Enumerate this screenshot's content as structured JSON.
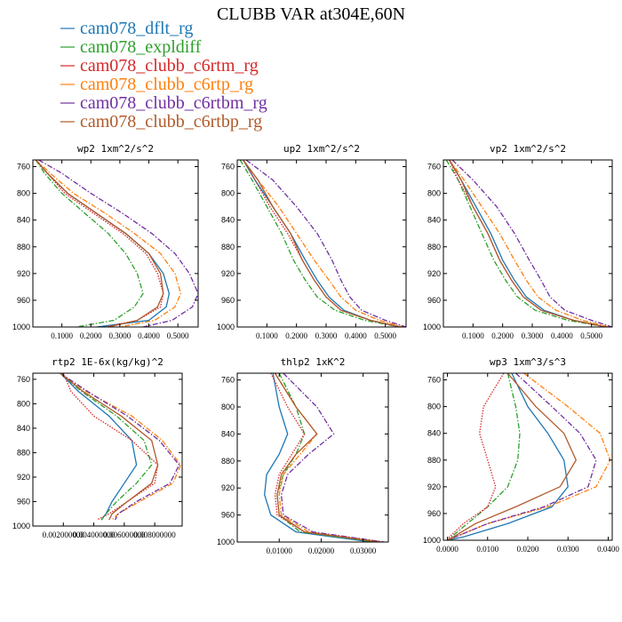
{
  "title": "CLUBB VAR at304E,60N",
  "legend": [
    {
      "label": "cam078_dflt_rg",
      "color": "#1f77b4",
      "dash": "solid"
    },
    {
      "label": "cam078_expldiff",
      "color": "#2ca02c",
      "dash": "dashdot"
    },
    {
      "label": "cam078_clubb_c6rtm_rg",
      "color": "#d62728",
      "dash": "dotted"
    },
    {
      "label": "cam078_clubb_c6rtp_rg",
      "color": "#ff7f0e",
      "dash": "dashdot"
    },
    {
      "label": "cam078_clubb_c6rtbm_rg",
      "color": "#7030a0",
      "dash": "dashdot"
    },
    {
      "label": "cam078_clubb_c6rtbp_rg",
      "color": "#b05a2a",
      "dash": "solid"
    }
  ],
  "chart_data": [
    {
      "type": "line",
      "title": "wp2  1xm^2/s^2",
      "yticks": [
        "760",
        "800",
        "840",
        "880",
        "920",
        "960",
        "1000"
      ],
      "xticks": [
        "0.1000",
        "0.2000",
        "0.3000",
        "0.4000",
        "0.5000"
      ],
      "xlim": [
        0.0,
        0.57
      ],
      "ylim": [
        1000,
        750
      ],
      "series": [
        {
          "x": [
            0.01,
            0.05,
            0.12,
            0.22,
            0.32,
            0.4,
            0.45,
            0.47,
            0.46,
            0.4,
            0.22
          ],
          "y": [
            750,
            770,
            800,
            830,
            860,
            890,
            920,
            950,
            970,
            990,
            1000
          ]
        },
        {
          "x": [
            0.01,
            0.04,
            0.1,
            0.18,
            0.26,
            0.32,
            0.36,
            0.38,
            0.35,
            0.28,
            0.15
          ],
          "y": [
            750,
            770,
            800,
            830,
            860,
            890,
            920,
            950,
            970,
            990,
            1000
          ]
        },
        {
          "x": [
            0.01,
            0.05,
            0.11,
            0.21,
            0.31,
            0.39,
            0.43,
            0.45,
            0.44,
            0.36,
            0.25
          ],
          "y": [
            750,
            770,
            800,
            830,
            860,
            890,
            920,
            950,
            970,
            990,
            1000
          ]
        },
        {
          "x": [
            0.01,
            0.06,
            0.14,
            0.25,
            0.35,
            0.44,
            0.49,
            0.51,
            0.49,
            0.42,
            0.3
          ],
          "y": [
            750,
            770,
            800,
            830,
            860,
            890,
            920,
            950,
            970,
            990,
            1000
          ]
        },
        {
          "x": [
            0.02,
            0.1,
            0.2,
            0.31,
            0.41,
            0.49,
            0.54,
            0.57,
            0.55,
            0.48,
            0.38
          ],
          "y": [
            750,
            770,
            800,
            830,
            860,
            890,
            920,
            950,
            970,
            990,
            1000
          ]
        },
        {
          "x": [
            0.01,
            0.05,
            0.12,
            0.22,
            0.32,
            0.4,
            0.44,
            0.45,
            0.43,
            0.36,
            0.26
          ],
          "y": [
            750,
            770,
            800,
            830,
            860,
            890,
            920,
            950,
            970,
            990,
            1000
          ]
        }
      ]
    },
    {
      "type": "line",
      "title": "up2  1xm^2/s^2",
      "yticks": [
        "760",
        "800",
        "840",
        "880",
        "920",
        "960",
        "1000"
      ],
      "xticks": [
        "0.1000",
        "0.2000",
        "0.3000",
        "0.4000",
        "0.5000"
      ],
      "xlim": [
        0.0,
        0.57
      ],
      "ylim": [
        1000,
        750
      ],
      "series": [
        {
          "x": [
            0.02,
            0.06,
            0.12,
            0.18,
            0.23,
            0.27,
            0.31,
            0.36,
            0.45,
            0.55
          ],
          "y": [
            750,
            780,
            820,
            860,
            900,
            930,
            955,
            975,
            990,
            1000
          ]
        },
        {
          "x": [
            0.01,
            0.05,
            0.1,
            0.15,
            0.19,
            0.23,
            0.27,
            0.33,
            0.43,
            0.55
          ],
          "y": [
            750,
            780,
            820,
            860,
            900,
            930,
            955,
            975,
            990,
            1000
          ]
        },
        {
          "x": [
            0.02,
            0.06,
            0.11,
            0.17,
            0.22,
            0.26,
            0.3,
            0.35,
            0.45,
            0.55
          ],
          "y": [
            750,
            780,
            820,
            860,
            900,
            930,
            955,
            975,
            990,
            1000
          ]
        },
        {
          "x": [
            0.02,
            0.07,
            0.14,
            0.2,
            0.26,
            0.31,
            0.35,
            0.4,
            0.48,
            0.56
          ],
          "y": [
            750,
            780,
            820,
            860,
            900,
            930,
            955,
            975,
            990,
            1000
          ]
        },
        {
          "x": [
            0.03,
            0.12,
            0.2,
            0.27,
            0.32,
            0.35,
            0.38,
            0.42,
            0.5,
            0.57
          ],
          "y": [
            750,
            780,
            820,
            860,
            900,
            930,
            955,
            975,
            990,
            1000
          ]
        },
        {
          "x": [
            0.02,
            0.07,
            0.12,
            0.18,
            0.22,
            0.26,
            0.3,
            0.35,
            0.45,
            0.55
          ],
          "y": [
            750,
            780,
            820,
            860,
            900,
            930,
            955,
            975,
            990,
            1000
          ]
        }
      ]
    },
    {
      "type": "line",
      "title": "vp2  1xm^2/s^2",
      "yticks": [
        "760",
        "800",
        "840",
        "880",
        "920",
        "960",
        "1000"
      ],
      "xticks": [
        "0.1000",
        "0.2000",
        "0.3000",
        "0.4000",
        "0.5000"
      ],
      "xlim": [
        0.0,
        0.57
      ],
      "ylim": [
        1000,
        750
      ],
      "series": [
        {
          "x": [
            0.02,
            0.06,
            0.11,
            0.16,
            0.2,
            0.24,
            0.28,
            0.34,
            0.44,
            0.55
          ],
          "y": [
            750,
            780,
            820,
            860,
            900,
            930,
            955,
            975,
            990,
            1000
          ]
        },
        {
          "x": [
            0.01,
            0.05,
            0.09,
            0.13,
            0.17,
            0.21,
            0.25,
            0.31,
            0.42,
            0.55
          ],
          "y": [
            750,
            780,
            820,
            860,
            900,
            930,
            955,
            975,
            990,
            1000
          ]
        },
        {
          "x": [
            0.02,
            0.05,
            0.1,
            0.15,
            0.19,
            0.23,
            0.27,
            0.33,
            0.44,
            0.55
          ],
          "y": [
            750,
            780,
            820,
            860,
            900,
            930,
            955,
            975,
            990,
            1000
          ]
        },
        {
          "x": [
            0.02,
            0.07,
            0.13,
            0.19,
            0.24,
            0.28,
            0.32,
            0.38,
            0.47,
            0.56
          ],
          "y": [
            750,
            780,
            820,
            860,
            900,
            930,
            955,
            975,
            990,
            1000
          ]
        },
        {
          "x": [
            0.03,
            0.1,
            0.18,
            0.24,
            0.29,
            0.33,
            0.36,
            0.41,
            0.5,
            0.57
          ],
          "y": [
            750,
            780,
            820,
            860,
            900,
            930,
            955,
            975,
            990,
            1000
          ]
        },
        {
          "x": [
            0.02,
            0.06,
            0.1,
            0.15,
            0.19,
            0.23,
            0.27,
            0.33,
            0.44,
            0.55
          ],
          "y": [
            750,
            780,
            820,
            860,
            900,
            930,
            955,
            975,
            990,
            1000
          ]
        }
      ]
    },
    {
      "type": "line",
      "title": "rtp2  1E-6x(kg/kg)^2",
      "yticks": [
        "760",
        "800",
        "840",
        "880",
        "920",
        "960",
        "1000"
      ],
      "xticks": [
        "0.002000000",
        "0.004000000",
        "0.006000000",
        "0.008000000"
      ],
      "xlim": [
        0.0,
        0.0098
      ],
      "ylim": [
        1000,
        750
      ],
      "series": [
        {
          "x": [
            0.0018,
            0.003,
            0.005,
            0.0065,
            0.0068,
            0.006,
            0.0052,
            0.0048,
            0.0045
          ],
          "y": [
            750,
            780,
            820,
            860,
            900,
            930,
            960,
            980,
            990
          ]
        },
        {
          "x": [
            0.0018,
            0.0032,
            0.0055,
            0.0073,
            0.0078,
            0.0068,
            0.0055,
            0.0048,
            0.0045
          ],
          "y": [
            750,
            780,
            820,
            860,
            900,
            930,
            960,
            980,
            990
          ]
        },
        {
          "x": [
            0.002,
            0.0025,
            0.004,
            0.0065,
            0.0082,
            0.008,
            0.0062,
            0.005,
            0.0042
          ],
          "y": [
            750,
            780,
            820,
            860,
            900,
            930,
            960,
            980,
            990
          ]
        },
        {
          "x": [
            0.0018,
            0.0035,
            0.0065,
            0.0085,
            0.0097,
            0.0092,
            0.007,
            0.0056,
            0.0052
          ],
          "y": [
            750,
            780,
            820,
            860,
            900,
            930,
            960,
            980,
            990
          ]
        },
        {
          "x": [
            0.0018,
            0.0036,
            0.0062,
            0.0083,
            0.0096,
            0.009,
            0.0068,
            0.0056,
            0.0054
          ],
          "y": [
            750,
            780,
            820,
            860,
            900,
            930,
            960,
            980,
            990
          ]
        },
        {
          "x": [
            0.0018,
            0.0033,
            0.0058,
            0.0078,
            0.0082,
            0.0078,
            0.0062,
            0.0052,
            0.005
          ],
          "y": [
            750,
            780,
            820,
            860,
            900,
            930,
            960,
            980,
            990
          ]
        }
      ]
    },
    {
      "type": "line",
      "title": "thlp2  1xK^2",
      "yticks": [
        "760",
        "800",
        "840",
        "880",
        "920",
        "960",
        "1000"
      ],
      "xticks": [
        "0.01000",
        "0.02000",
        "0.03000"
      ],
      "xlim": [
        0.0,
        0.036
      ],
      "ylim": [
        1000,
        750
      ],
      "series": [
        {
          "x": [
            0.0085,
            0.01,
            0.012,
            0.01,
            0.007,
            0.0065,
            0.008,
            0.014,
            0.032
          ],
          "y": [
            750,
            800,
            840,
            870,
            900,
            930,
            960,
            985,
            1000
          ]
        },
        {
          "x": [
            0.01,
            0.014,
            0.016,
            0.014,
            0.011,
            0.0095,
            0.01,
            0.015,
            0.033
          ],
          "y": [
            750,
            800,
            840,
            870,
            900,
            930,
            960,
            985,
            1000
          ]
        },
        {
          "x": [
            0.008,
            0.012,
            0.016,
            0.013,
            0.01,
            0.009,
            0.0095,
            0.016,
            0.034
          ],
          "y": [
            750,
            800,
            840,
            870,
            900,
            930,
            960,
            985,
            1000
          ]
        },
        {
          "x": [
            0.009,
            0.014,
            0.019,
            0.015,
            0.011,
            0.01,
            0.0105,
            0.017,
            0.035
          ],
          "y": [
            750,
            800,
            840,
            870,
            900,
            930,
            960,
            985,
            1000
          ]
        },
        {
          "x": [
            0.011,
            0.019,
            0.023,
            0.017,
            0.012,
            0.0105,
            0.011,
            0.018,
            0.035
          ],
          "y": [
            750,
            800,
            840,
            870,
            900,
            930,
            960,
            985,
            1000
          ]
        },
        {
          "x": [
            0.009,
            0.014,
            0.019,
            0.014,
            0.0105,
            0.0095,
            0.01,
            0.016,
            0.034
          ],
          "y": [
            750,
            800,
            840,
            870,
            900,
            930,
            960,
            985,
            1000
          ]
        }
      ]
    },
    {
      "type": "line",
      "title": "wp3  1xm^3/s^3",
      "yticks": [
        "760",
        "800",
        "840",
        "880",
        "920",
        "960",
        "1000"
      ],
      "xticks": [
        "0.0000",
        "0.0100",
        "0.0200",
        "0.0300",
        "0.0400"
      ],
      "xlim": [
        -0.001,
        0.041
      ],
      "ylim": [
        1000,
        750
      ],
      "series": [
        {
          "x": [
            0.016,
            0.02,
            0.025,
            0.029,
            0.03,
            0.026,
            0.015,
            0.004,
            0.0
          ],
          "y": [
            750,
            800,
            840,
            880,
            920,
            950,
            975,
            995,
            1000
          ]
        },
        {
          "x": [
            0.015,
            0.017,
            0.018,
            0.0175,
            0.015,
            0.01,
            0.005,
            0.001,
            0.0
          ],
          "y": [
            750,
            800,
            840,
            880,
            920,
            950,
            975,
            995,
            1000
          ]
        },
        {
          "x": [
            0.014,
            0.009,
            0.008,
            0.01,
            0.012,
            0.01,
            0.004,
            0.0005,
            0.0
          ],
          "y": [
            750,
            800,
            840,
            880,
            920,
            950,
            975,
            995,
            1000
          ]
        },
        {
          "x": [
            0.019,
            0.03,
            0.038,
            0.0405,
            0.037,
            0.025,
            0.01,
            0.002,
            0.0
          ],
          "y": [
            750,
            800,
            840,
            880,
            920,
            950,
            975,
            995,
            1000
          ]
        },
        {
          "x": [
            0.017,
            0.026,
            0.033,
            0.037,
            0.035,
            0.024,
            0.01,
            0.002,
            0.0
          ],
          "y": [
            750,
            800,
            840,
            880,
            920,
            950,
            975,
            995,
            1000
          ]
        },
        {
          "x": [
            0.015,
            0.022,
            0.029,
            0.032,
            0.028,
            0.017,
            0.007,
            0.0015,
            0.0
          ],
          "y": [
            750,
            800,
            840,
            880,
            920,
            950,
            975,
            995,
            1000
          ]
        }
      ]
    }
  ]
}
